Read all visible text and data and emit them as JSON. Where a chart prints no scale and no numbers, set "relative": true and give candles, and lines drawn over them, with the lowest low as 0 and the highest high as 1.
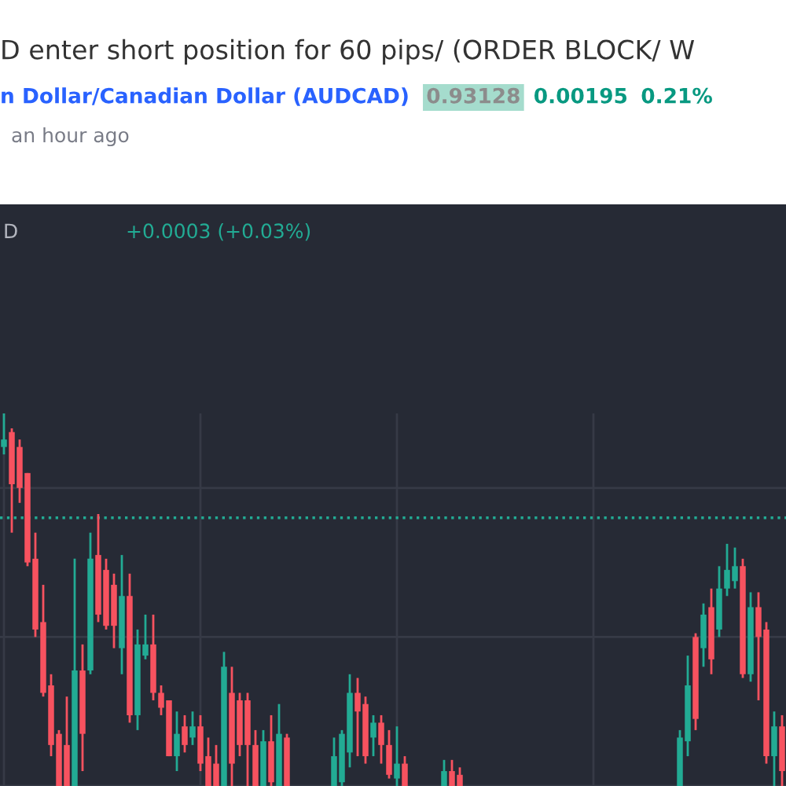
{
  "chart_data": {
    "type": "candlestick",
    "title": "D enter short position for 60 pips/ (ORDER BLOCK/ W",
    "subtitle": "n Dollar/Canadian Dollar (AUDCAD)",
    "annotations": [
      "0.93128",
      "0.00195",
      "0.21%",
      "an hour ago",
      "D",
      "+0.0003 (+0.03%)"
    ],
    "relative": true,
    "grid": true,
    "ref_lines": [
      {
        "axis": "y",
        "value": 0.72,
        "color": "#22ab94",
        "line_style": "dotted"
      }
    ],
    "categories": [
      null,
      null,
      null,
      null,
      null,
      null,
      null,
      null,
      null,
      null,
      null,
      null,
      null,
      null,
      null,
      null,
      null,
      null,
      null,
      null,
      null,
      null,
      null,
      null,
      null,
      null,
      null,
      null,
      null,
      null,
      null,
      null,
      null,
      null,
      null,
      null,
      null,
      null,
      null,
      null,
      null,
      null,
      null,
      null,
      null,
      null,
      null,
      null,
      null,
      null,
      null,
      null,
      null,
      null,
      null,
      null,
      null,
      null,
      null,
      null,
      null,
      null,
      null,
      null,
      null,
      null,
      null,
      null,
      null,
      null,
      null,
      null,
      null,
      null,
      null,
      null,
      null,
      null,
      null,
      null,
      null,
      null,
      null,
      null,
      null,
      null,
      null,
      null,
      null,
      null,
      null,
      null,
      null,
      null,
      null,
      null,
      null,
      null,
      null,
      null
    ],
    "ohlc": [
      [
        0.91,
        1.0,
        0.89,
        0.93
      ],
      [
        0.95,
        0.96,
        0.68,
        0.81
      ],
      [
        0.91,
        0.93,
        0.76,
        0.8
      ],
      [
        0.84,
        0.84,
        0.59,
        0.6
      ],
      [
        0.61,
        0.68,
        0.4,
        0.42
      ],
      [
        0.44,
        0.54,
        0.24,
        0.25
      ],
      [
        0.27,
        0.3,
        0.08,
        0.11
      ],
      [
        0.14,
        0.15,
        0,
        0
      ],
      [
        0.11,
        0.24,
        0,
        0
      ],
      [
        0,
        0.61,
        0,
        0.31
      ],
      [
        0.31,
        0.38,
        0.04,
        0.14
      ],
      [
        0.31,
        0.68,
        0.3,
        0.61
      ],
      [
        0.62,
        0.73,
        0.44,
        0.46
      ],
      [
        0.58,
        0.61,
        0.42,
        0.43
      ],
      [
        0.54,
        0.57,
        0.37,
        0.43
      ],
      [
        0.37,
        0.62,
        0.3,
        0.51
      ],
      [
        0.51,
        0.57,
        0.17,
        0.19
      ],
      [
        0.19,
        0.42,
        0.15,
        0.38
      ],
      [
        0.35,
        0.46,
        0.34,
        0.38
      ],
      [
        0.38,
        0.46,
        0.23,
        0.25
      ],
      [
        0.25,
        0.27,
        0.19,
        0.21
      ],
      [
        0.23,
        0.23,
        0.08,
        0.08
      ],
      [
        0.08,
        0.2,
        0.04,
        0.14
      ],
      [
        0.16,
        0.19,
        0.09,
        0.11
      ],
      [
        0.13,
        0.2,
        0.11,
        0.16
      ],
      [
        0.16,
        0.19,
        0.04,
        0.06
      ],
      [
        0.08,
        0.13,
        0,
        0
      ],
      [
        0.06,
        0.11,
        0,
        0
      ],
      [
        0,
        0.36,
        0,
        0.32
      ],
      [
        0.25,
        0.32,
        0,
        0.06
      ],
      [
        0.23,
        0.25,
        0.08,
        0.11
      ],
      [
        0.23,
        0.25,
        0,
        0.11
      ],
      [
        0.11,
        0.15,
        0,
        0
      ],
      [
        0,
        0.15,
        0,
        0.12
      ],
      [
        0.12,
        0.19,
        0,
        0.01
      ],
      [
        0,
        0.22,
        0,
        0.14
      ],
      [
        0.13,
        0.14,
        0,
        0
      ],
      null,
      null,
      null,
      null,
      null,
      [
        0,
        0.13,
        0,
        0.08
      ],
      [
        0.01,
        0.15,
        0,
        0.14
      ],
      [
        0.09,
        0.3,
        0.05,
        0.25
      ],
      [
        0.25,
        0.29,
        0.08,
        0.2
      ],
      [
        0.22,
        0.24,
        0.06,
        0.08
      ],
      [
        0.13,
        0.19,
        0.08,
        0.17
      ],
      [
        0.17,
        0.19,
        0.06,
        0.11
      ],
      [
        0.11,
        0.15,
        0.02,
        0.03
      ],
      [
        0.02,
        0.16,
        0,
        0.06
      ],
      [
        0.06,
        0.08,
        0,
        0
      ],
      null,
      null,
      null,
      null,
      [
        0,
        0.07,
        0,
        0.04
      ],
      [
        0.04,
        0.07,
        0,
        0
      ],
      [
        0.03,
        0.05,
        0,
        0
      ],
      null,
      null,
      null,
      null,
      null,
      null,
      null,
      null,
      null,
      null,
      null,
      null,
      null,
      null,
      null,
      null,
      null,
      null,
      null,
      null,
      null,
      null,
      null,
      null,
      null,
      null,
      null,
      [
        0,
        0.15,
        0,
        0.13
      ],
      [
        0.12,
        0.35,
        0.08,
        0.27
      ],
      [
        0.4,
        0.41,
        0.15,
        0.18
      ],
      [
        0.37,
        0.49,
        0.32,
        0.46
      ],
      [
        0.48,
        0.53,
        0.3,
        0.34
      ],
      [
        0.42,
        0.59,
        0.4,
        0.53
      ],
      [
        0.53,
        0.65,
        0.51,
        0.58
      ],
      [
        0.55,
        0.64,
        0.53,
        0.59
      ],
      [
        0.59,
        0.61,
        0.29,
        0.3
      ],
      [
        0.3,
        0.52,
        0.28,
        0.48
      ],
      [
        0.48,
        0.52,
        0.23,
        0.4
      ],
      [
        0.42,
        0.44,
        0.06,
        0.08
      ],
      [
        0.08,
        0.2,
        0,
        0.16
      ],
      [
        0.16,
        0.19,
        0,
        0.04
      ]
    ]
  }
}
